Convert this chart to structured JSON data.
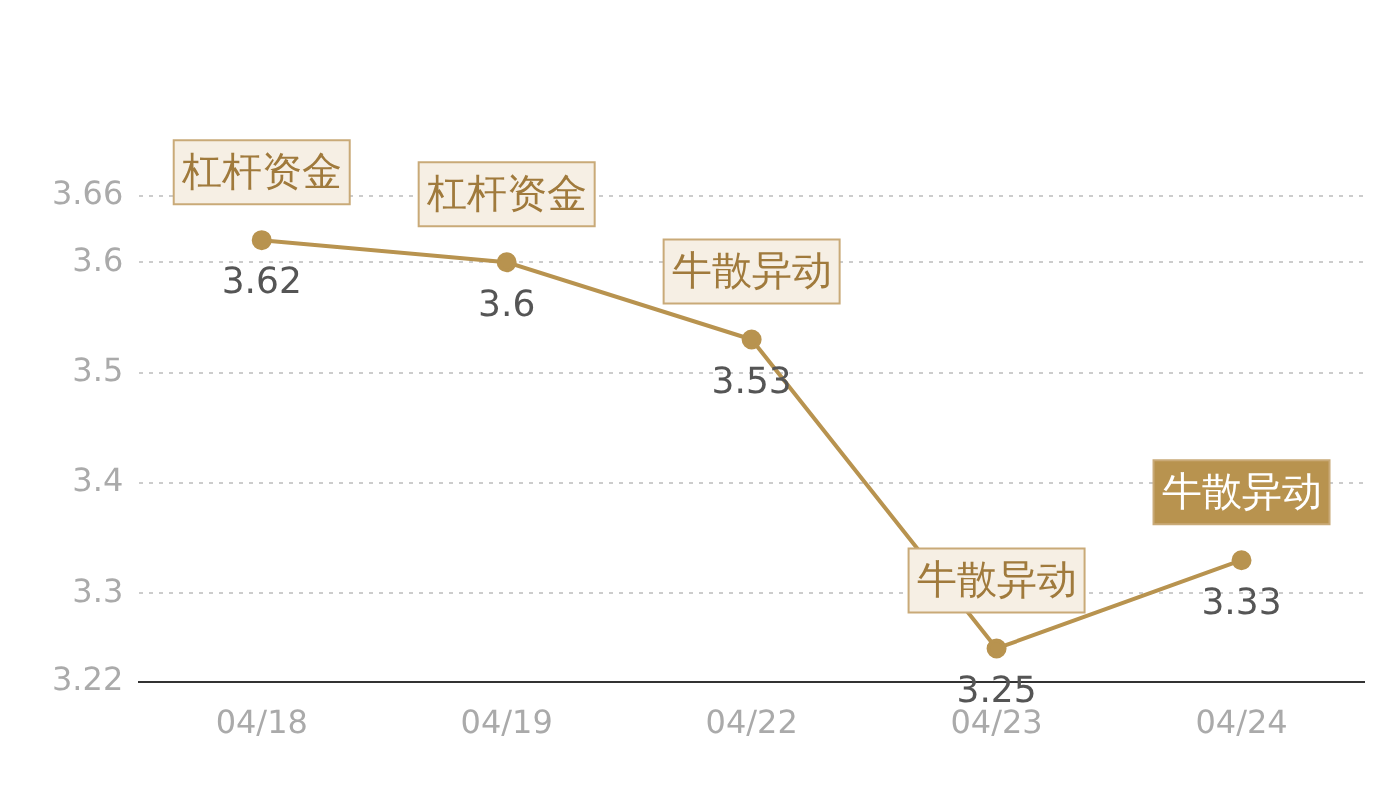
{
  "chart_data": {
    "type": "line",
    "categories": [
      "04/18",
      "04/19",
      "04/22",
      "04/23",
      "04/24"
    ],
    "series": [
      {
        "color": "#b8934f",
        "values": [
          3.62,
          3.6,
          3.53,
          3.25,
          3.33
        ]
      }
    ],
    "ylim": [
      3.22,
      3.66
    ],
    "yticks": [
      3.22,
      3.3,
      3.4,
      3.5,
      3.6,
      3.66
    ],
    "grid": "y",
    "marker": "circle",
    "line_style": "solid",
    "data_labels": true,
    "annotations": [
      {
        "text": "杠杆资金",
        "x": "04/18",
        "y": 3.62
      },
      {
        "text": "杠杆资金",
        "x": "04/19",
        "y": 3.6
      },
      {
        "text": "牛散异动",
        "x": "04/22",
        "y": 3.53
      },
      {
        "text": "牛散异动",
        "x": "04/23",
        "y": 3.25
      },
      {
        "text": "牛散异动",
        "x": "04/24",
        "y": 3.33
      }
    ]
  }
}
